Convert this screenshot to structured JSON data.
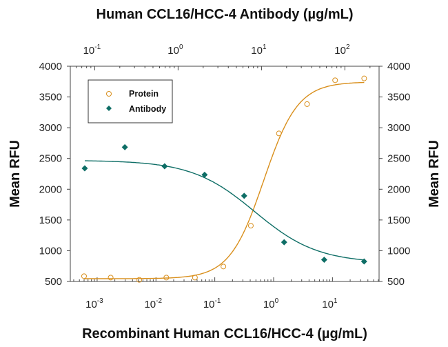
{
  "chart_data": {
    "type": "scatter",
    "title_top": "Human CCL16/HCC-4 Antibody (µg/mL)",
    "xlabel": "Recombinant Human CCL16/HCC-4 (µg/mL)",
    "ylabel_left": "Mean RFU",
    "ylabel_right": "Mean RFU",
    "x_bottom": {
      "scale": "log",
      "range": [
        0.00035,
        62
      ],
      "tick_exponents": [
        -3,
        -2,
        -1,
        0,
        1
      ]
    },
    "x_top": {
      "scale": "log",
      "range": [
        0.051,
        257
      ],
      "tick_exponents": [
        -1,
        0,
        1,
        2
      ]
    },
    "y": {
      "range": [
        500,
        4000
      ],
      "ticks": [
        500,
        1000,
        1500,
        2000,
        2500,
        3000,
        3500,
        4000
      ]
    },
    "grid": false,
    "legend_placement": "top-left",
    "series": [
      {
        "name": "Protein",
        "axis": "bottom",
        "marker": "open-circle",
        "color": "#d98f1c",
        "x": [
          0.0006,
          0.0017,
          0.0052,
          0.015,
          0.046,
          0.14,
          0.41,
          1.23,
          3.7,
          11.1,
          34.6
        ],
        "y": [
          586,
          563,
          526,
          563,
          563,
          743,
          1407,
          2907,
          3384,
          3772,
          3802
        ],
        "fit": {
          "model": "4PL",
          "bottom": 545,
          "top": 3745,
          "ec50": 0.68,
          "hill": 1.5
        }
      },
      {
        "name": "Antibody",
        "axis": "top",
        "marker": "filled-diamond",
        "color": "#0e6e66",
        "x": [
          0.076,
          0.23,
          0.69,
          2.08,
          6.2,
          18.7,
          56.5,
          170
        ],
        "y": [
          2340,
          2683,
          2373,
          2235,
          1892,
          1138,
          854,
          825
        ],
        "fit": {
          "model": "4PL",
          "bottom": 800,
          "top": 2470,
          "ec50": 8.3,
          "hill": -1.15
        }
      }
    ]
  }
}
